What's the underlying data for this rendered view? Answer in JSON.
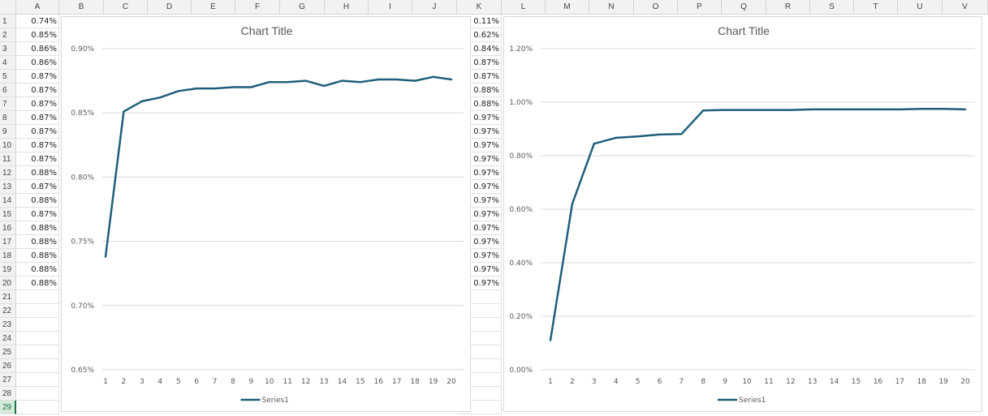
{
  "columns": [
    "A",
    "B",
    "C",
    "D",
    "E",
    "F",
    "G",
    "H",
    "I",
    "J",
    "K",
    "L",
    "M",
    "N",
    "O",
    "P",
    "Q",
    "R",
    "S",
    "T",
    "U",
    "V"
  ],
  "rows": [
    "1",
    "2",
    "3",
    "4",
    "5",
    "6",
    "7",
    "8",
    "9",
    "10",
    "11",
    "12",
    "13",
    "14",
    "15",
    "16",
    "17",
    "18",
    "19",
    "20",
    "21",
    "22",
    "23",
    "24",
    "25",
    "26",
    "27",
    "28",
    "29"
  ],
  "active_row": "29",
  "column_a": [
    "0.74%",
    "0.85%",
    "0.86%",
    "0.86%",
    "0.87%",
    "0.87%",
    "0.87%",
    "0.87%",
    "0.87%",
    "0.87%",
    "0.87%",
    "0.88%",
    "0.87%",
    "0.88%",
    "0.87%",
    "0.88%",
    "0.88%",
    "0.88%",
    "0.88%",
    "0.88%"
  ],
  "column_k": [
    "0.11%",
    "0.62%",
    "0.84%",
    "0.87%",
    "0.87%",
    "0.88%",
    "0.88%",
    "0.97%",
    "0.97%",
    "0.97%",
    "0.97%",
    "0.97%",
    "0.97%",
    "0.97%",
    "0.97%",
    "0.97%",
    "0.97%",
    "0.97%",
    "0.97%",
    "0.97%"
  ],
  "colors": {
    "series": "#1f5f7a",
    "grid": "#d9d9d9",
    "axis_text": "#595959",
    "title": "#595959"
  },
  "chart_data": [
    {
      "type": "line",
      "title": "Chart Title",
      "x": [
        1,
        2,
        3,
        4,
        5,
        6,
        7,
        8,
        9,
        10,
        11,
        12,
        13,
        14,
        15,
        16,
        17,
        18,
        19,
        20
      ],
      "series": [
        {
          "name": "Series1",
          "values": [
            0.738,
            0.851,
            0.859,
            0.862,
            0.867,
            0.869,
            0.869,
            0.87,
            0.87,
            0.874,
            0.874,
            0.875,
            0.871,
            0.875,
            0.874,
            0.876,
            0.876,
            0.875,
            0.878,
            0.876
          ]
        }
      ],
      "ylim": [
        0.0065,
        0.009
      ],
      "yticks": [
        "0.65%",
        "0.70%",
        "0.75%",
        "0.80%",
        "0.85%",
        "0.90%"
      ],
      "xticks": [
        "1",
        "2",
        "3",
        "4",
        "5",
        "6",
        "7",
        "8",
        "9",
        "10",
        "11",
        "12",
        "13",
        "14",
        "15",
        "16",
        "17",
        "18",
        "19",
        "20"
      ],
      "legend": "bottom",
      "grid": true
    },
    {
      "type": "line",
      "title": "Chart Title",
      "x": [
        1,
        2,
        3,
        4,
        5,
        6,
        7,
        8,
        9,
        10,
        11,
        12,
        13,
        14,
        15,
        16,
        17,
        18,
        19,
        20
      ],
      "series": [
        {
          "name": "Series1",
          "values": [
            0.11,
            0.62,
            0.845,
            0.867,
            0.872,
            0.879,
            0.881,
            0.969,
            0.971,
            0.971,
            0.971,
            0.971,
            0.973,
            0.973,
            0.973,
            0.973,
            0.973,
            0.975,
            0.975,
            0.973
          ]
        }
      ],
      "ylim": [
        0,
        0.012
      ],
      "yticks": [
        "0.00%",
        "0.20%",
        "0.40%",
        "0.60%",
        "0.80%",
        "1.00%",
        "1.20%"
      ],
      "xticks": [
        "1",
        "2",
        "3",
        "4",
        "5",
        "6",
        "7",
        "8",
        "9",
        "10",
        "11",
        "12",
        "13",
        "14",
        "15",
        "16",
        "17",
        "18",
        "19",
        "20"
      ],
      "legend": "bottom",
      "grid": true
    }
  ]
}
